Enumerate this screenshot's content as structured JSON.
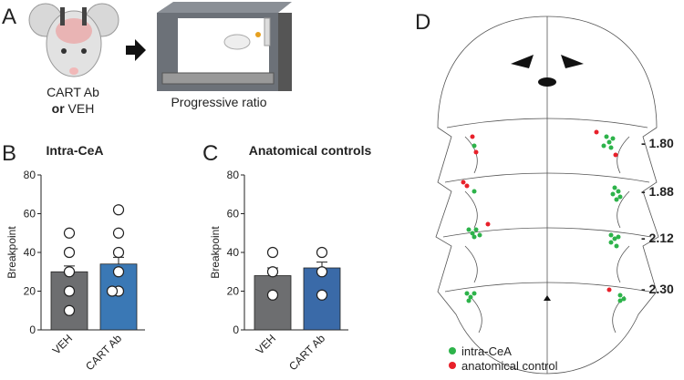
{
  "panel_a": {
    "letter": "A",
    "treatment_1": "CART Ab",
    "treatment_or": "or",
    "treatment_2": "VEH",
    "task": "Progressive ratio"
  },
  "panel_b": {
    "letter": "B"
  },
  "panel_c": {
    "letter": "C"
  },
  "panel_d": {
    "letter": "D",
    "levels": [
      "- 1.80",
      "- 1.88",
      "- 2.12",
      "- 2.30"
    ],
    "legend": [
      {
        "name": "intra-CeA",
        "color": "#2db34a"
      },
      {
        "name": "anatomical control",
        "color": "#e8202a"
      }
    ]
  },
  "chart_data": [
    {
      "type": "bar",
      "title": "Intra-CeA",
      "y_label": "Breakpoint",
      "categories": [
        "VEH",
        "CART Ab"
      ],
      "values": [
        30,
        34
      ],
      "errors": [
        3,
        3.5
      ],
      "colors": [
        "#6d6e70",
        "#3a78b5"
      ],
      "points": [
        [
          50,
          40,
          30,
          20,
          10
        ],
        [
          62,
          50,
          40,
          30,
          20,
          20
        ]
      ],
      "ylim": [
        0,
        80
      ],
      "yticks": [
        0,
        20,
        40,
        60,
        80
      ]
    },
    {
      "type": "bar",
      "title": "Anatomical controls",
      "y_label": "Breakpoint",
      "categories": [
        "VEH",
        "CART Ab"
      ],
      "values": [
        28,
        32
      ],
      "errors": [
        4,
        3
      ],
      "colors": [
        "#6d6e70",
        "#3a6aa8"
      ],
      "points": [
        [
          40,
          30,
          18
        ],
        [
          40,
          30,
          18
        ]
      ],
      "ylim": [
        0,
        80
      ],
      "yticks": [
        0,
        20,
        40,
        60,
        80
      ]
    }
  ]
}
